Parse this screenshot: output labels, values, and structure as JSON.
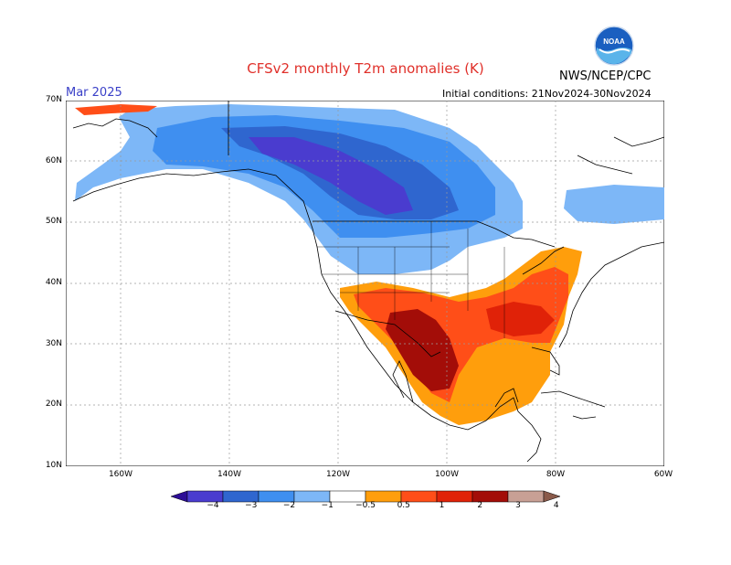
{
  "header": {
    "title": "CFSv2 monthly T2m anomalies (K)",
    "month": "Mar 2025",
    "agency": "NWS/NCEP/CPC",
    "initial_conditions": "Initial conditions: 21Nov2024-30Nov2024",
    "logo_icon": "noaa-logo-icon"
  },
  "axes": {
    "lat_labels": [
      "70N",
      "60N",
      "50N",
      "40N",
      "30N",
      "20N",
      "10N"
    ],
    "lon_labels": [
      "160W",
      "140W",
      "120W",
      "100W",
      "80W",
      "60W"
    ]
  },
  "colorbar": {
    "labels": [
      "−4",
      "−3",
      "−2",
      "−1",
      "−0.5",
      "0.5",
      "1",
      "2",
      "3",
      "4"
    ],
    "colors": [
      "#2d0d96",
      "#4a3ccf",
      "#2f66cf",
      "#3f8ff0",
      "#7db7f7",
      "#ffffff",
      "#ff9e0c",
      "#ff4e18",
      "#e02208",
      "#a30d08",
      "#c8a095",
      "#8a5a4a"
    ]
  },
  "palette": {
    "land": "#ffffff",
    "ocean": "#ffffff",
    "grid": "#9a9a9a",
    "coast": "#000000",
    "title_color": "#e0302a",
    "month_color": "#3a40c8"
  }
}
